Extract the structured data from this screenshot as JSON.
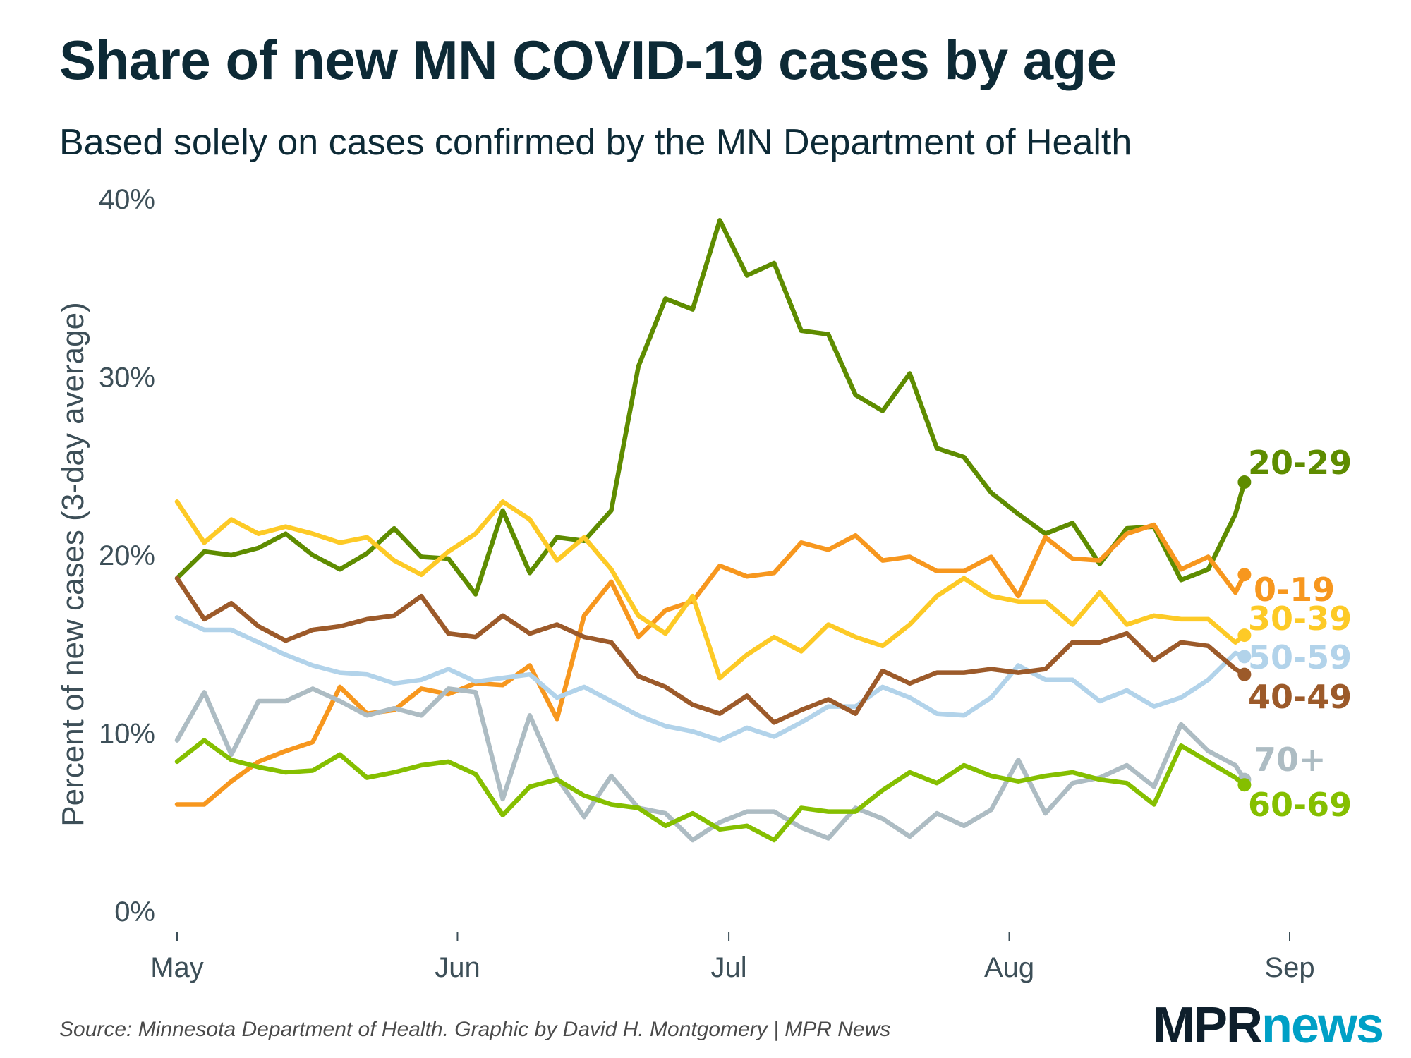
{
  "header": {
    "title": "Share of new MN COVID-19 cases by age",
    "subtitle": "Based solely on cases confirmed by the MN Department of Health"
  },
  "footer": {
    "source": "Source: Minnesota Department of Health. Graphic by David H. Montgomery | MPR News",
    "logo_text": "MPRnews",
    "logo_part1": "MPR",
    "logo_part2": "news",
    "logo_colors": {
      "mpr": "#0e1f2c",
      "news": "#00a0c6"
    }
  },
  "chart_data": {
    "type": "line",
    "title": "Share of new MN COVID-19 cases by age",
    "subtitle": "Based solely on cases confirmed by the MN Department of Health",
    "xlabel": "",
    "ylabel": "Percent of new cases (3-day average)",
    "xlim": [
      "2020-05-01",
      "2020-09-01"
    ],
    "ylim": [
      0,
      40
    ],
    "x_ticks": [
      {
        "date": "2020-05-01",
        "label": "May"
      },
      {
        "date": "2020-06-01",
        "label": "Jun"
      },
      {
        "date": "2020-07-01",
        "label": "Jul"
      },
      {
        "date": "2020-08-01",
        "label": "Aug"
      },
      {
        "date": "2020-09-01",
        "label": "Sep"
      }
    ],
    "y_ticks": [
      {
        "value": 0,
        "label": "0%"
      },
      {
        "value": 10,
        "label": "10%"
      },
      {
        "value": 20,
        "label": "20%"
      },
      {
        "value": 30,
        "label": "30%"
      },
      {
        "value": 40,
        "label": "40%"
      }
    ],
    "grid": false,
    "legend": "direct labels at line ends (right)",
    "x": [
      "2020-05-01",
      "2020-05-04",
      "2020-05-07",
      "2020-05-10",
      "2020-05-13",
      "2020-05-16",
      "2020-05-19",
      "2020-05-22",
      "2020-05-25",
      "2020-05-28",
      "2020-05-31",
      "2020-06-03",
      "2020-06-06",
      "2020-06-09",
      "2020-06-12",
      "2020-06-15",
      "2020-06-18",
      "2020-06-21",
      "2020-06-24",
      "2020-06-27",
      "2020-06-30",
      "2020-07-03",
      "2020-07-06",
      "2020-07-09",
      "2020-07-12",
      "2020-07-15",
      "2020-07-18",
      "2020-07-21",
      "2020-07-24",
      "2020-07-27",
      "2020-07-30",
      "2020-08-02",
      "2020-08-05",
      "2020-08-08",
      "2020-08-11",
      "2020-08-14",
      "2020-08-17",
      "2020-08-20",
      "2020-08-23",
      "2020-08-26",
      "2020-08-27"
    ],
    "series": [
      {
        "name": "20-29",
        "color": "#5e8c00",
        "values": [
          18.7,
          20.2,
          20.0,
          20.4,
          21.2,
          20.0,
          19.2,
          20.1,
          21.5,
          19.9,
          19.8,
          17.8,
          22.5,
          19.0,
          21.0,
          20.8,
          22.5,
          30.6,
          34.4,
          33.8,
          38.8,
          35.7,
          36.4,
          32.6,
          32.4,
          29.0,
          28.1,
          30.2,
          26.0,
          25.5,
          23.5,
          22.3,
          21.2,
          21.8,
          19.5,
          21.5,
          21.6,
          18.6,
          19.2,
          22.3,
          24.1
        ]
      },
      {
        "name": "0-19",
        "color": "#f7971e",
        "values": [
          6.0,
          6.0,
          7.3,
          8.4,
          9.0,
          9.5,
          12.6,
          11.1,
          11.3,
          12.5,
          12.2,
          12.8,
          12.7,
          13.8,
          10.8,
          16.6,
          18.5,
          15.4,
          16.9,
          17.4,
          19.4,
          18.8,
          19.0,
          20.7,
          20.3,
          21.1,
          19.7,
          19.9,
          19.1,
          19.1,
          19.9,
          17.7,
          21.0,
          19.8,
          19.7,
          21.2,
          21.7,
          19.2,
          19.9,
          17.9,
          18.9
        ]
      },
      {
        "name": "30-39",
        "color": "#fdca26",
        "values": [
          23.0,
          20.7,
          22.0,
          21.2,
          21.6,
          21.2,
          20.7,
          21.0,
          19.7,
          18.9,
          20.2,
          21.2,
          23.0,
          22.0,
          19.7,
          21.0,
          19.2,
          16.6,
          15.6,
          17.7,
          13.1,
          14.4,
          15.4,
          14.6,
          16.1,
          15.4,
          14.9,
          16.1,
          17.7,
          18.7,
          17.7,
          17.4,
          17.4,
          16.1,
          17.9,
          16.1,
          16.6,
          16.4,
          16.4,
          15.1,
          15.5
        ]
      },
      {
        "name": "50-59",
        "color": "#b2d3ea",
        "values": [
          16.5,
          15.8,
          15.8,
          15.1,
          14.4,
          13.8,
          13.4,
          13.3,
          12.8,
          13.0,
          13.6,
          12.9,
          13.1,
          13.3,
          12.0,
          12.6,
          11.8,
          11.0,
          10.4,
          10.1,
          9.6,
          10.3,
          9.8,
          10.6,
          11.5,
          11.5,
          12.6,
          12.0,
          11.1,
          11.0,
          12.0,
          13.8,
          13.0,
          13.0,
          11.8,
          12.4,
          11.5,
          12.0,
          13.0,
          14.5,
          14.3
        ]
      },
      {
        "name": "40-49",
        "color": "#9c5a2a",
        "values": [
          18.7,
          16.4,
          17.3,
          16.0,
          15.2,
          15.8,
          16.0,
          16.4,
          16.6,
          17.7,
          15.6,
          15.4,
          16.6,
          15.6,
          16.1,
          15.4,
          15.1,
          13.2,
          12.6,
          11.6,
          11.1,
          12.1,
          10.6,
          11.3,
          11.9,
          11.1,
          13.5,
          12.8,
          13.4,
          13.4,
          13.6,
          13.4,
          13.6,
          15.1,
          15.1,
          15.6,
          14.1,
          15.1,
          14.9,
          13.6,
          13.3
        ]
      },
      {
        "name": "70+",
        "color": "#adbcc3",
        "values": [
          9.6,
          12.3,
          8.8,
          11.8,
          11.8,
          12.5,
          11.8,
          11.0,
          11.4,
          11.0,
          12.5,
          12.3,
          6.3,
          11.0,
          7.5,
          5.3,
          7.6,
          5.8,
          5.5,
          4.0,
          5.0,
          5.6,
          5.6,
          4.7,
          4.1,
          5.8,
          5.2,
          4.2,
          5.5,
          4.8,
          5.7,
          8.5,
          5.5,
          7.2,
          7.5,
          8.2,
          7.0,
          10.5,
          9.0,
          8.2,
          7.4
        ]
      },
      {
        "name": "60-69",
        "color": "#85bf00",
        "values": [
          8.4,
          9.6,
          8.5,
          8.1,
          7.8,
          7.9,
          8.8,
          7.5,
          7.8,
          8.2,
          8.4,
          7.7,
          5.4,
          7.0,
          7.4,
          6.5,
          6.0,
          5.8,
          4.8,
          5.5,
          4.6,
          4.8,
          4.0,
          5.8,
          5.6,
          5.6,
          6.8,
          7.8,
          7.2,
          8.2,
          7.6,
          7.3,
          7.6,
          7.8,
          7.4,
          7.2,
          6.0,
          9.3,
          8.4,
          7.5,
          7.1
        ]
      }
    ]
  }
}
